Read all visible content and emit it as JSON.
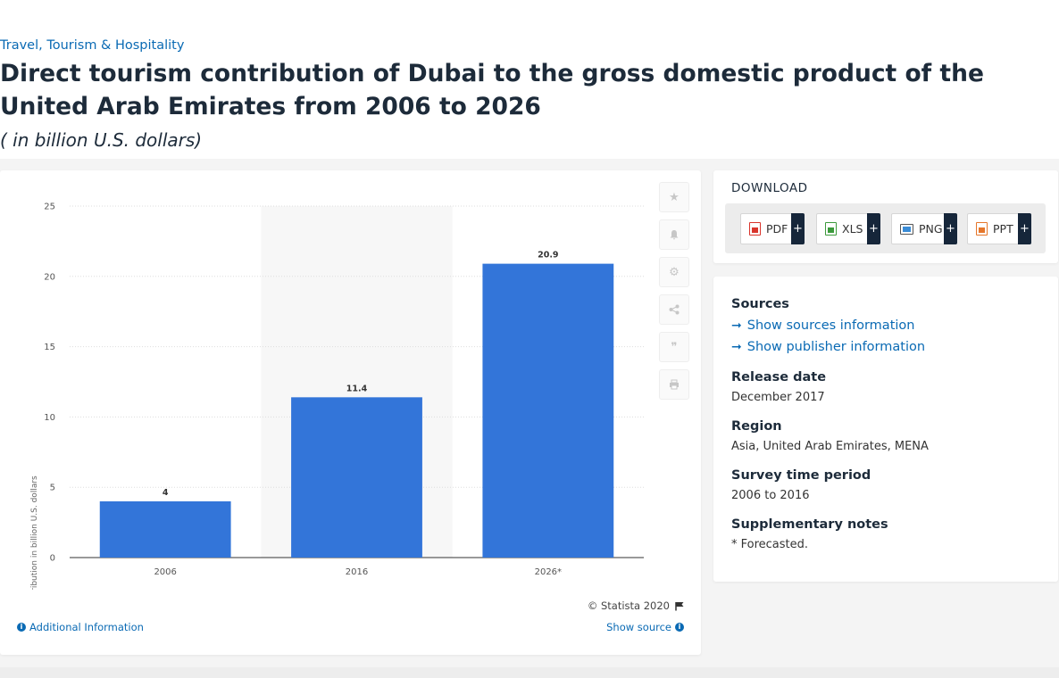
{
  "header": {
    "breadcrumb": "Travel, Tourism & Hospitality",
    "title": "Direct tourism contribution of Dubai to the gross domestic product of the United Arab Emirates from 2006 to 2026",
    "subtitle": "( in billion U.S. dollars)"
  },
  "chart_data": {
    "type": "bar",
    "categories": [
      "2006",
      "2016",
      "2026*"
    ],
    "values": [
      4,
      11.4,
      20.9
    ],
    "data_labels": [
      "4",
      "11.4",
      "20.9"
    ],
    "title": "",
    "xlabel": "",
    "ylabel": "GDP contribution in billion U.S. dollars",
    "ylim": [
      0,
      25
    ],
    "yticks": [
      0,
      5,
      10,
      15,
      20,
      25
    ],
    "grid": true,
    "bar_color": "#3375d9",
    "highlight_category": "2016"
  },
  "chart_footer": {
    "copyright": "© Statista 2020",
    "additional_info": "Additional Information",
    "show_source": "Show source"
  },
  "toolbar": {
    "icons": [
      "star-icon",
      "bell-icon",
      "gear-icon",
      "share-icon",
      "quote-icon",
      "print-icon"
    ]
  },
  "download": {
    "heading": "DOWNLOAD",
    "buttons": [
      {
        "label": "PDF",
        "plus": "+",
        "color": "#d9342b"
      },
      {
        "label": "XLS",
        "plus": "+",
        "color": "#3c9a3c"
      },
      {
        "label": "PNG",
        "plus": "+",
        "color": "#3a8cd6"
      },
      {
        "label": "PPT",
        "plus": "+",
        "color": "#e5762a"
      }
    ]
  },
  "meta": {
    "sources_heading": "Sources",
    "show_sources": "Show sources information",
    "show_publisher": "Show publisher information",
    "release_date_heading": "Release date",
    "release_date": "December 2017",
    "region_heading": "Region",
    "region": "Asia, United Arab Emirates, MENA",
    "survey_period_heading": "Survey time period",
    "survey_period": "2006 to 2016",
    "notes_heading": "Supplementary notes",
    "notes": "* Forecasted."
  }
}
